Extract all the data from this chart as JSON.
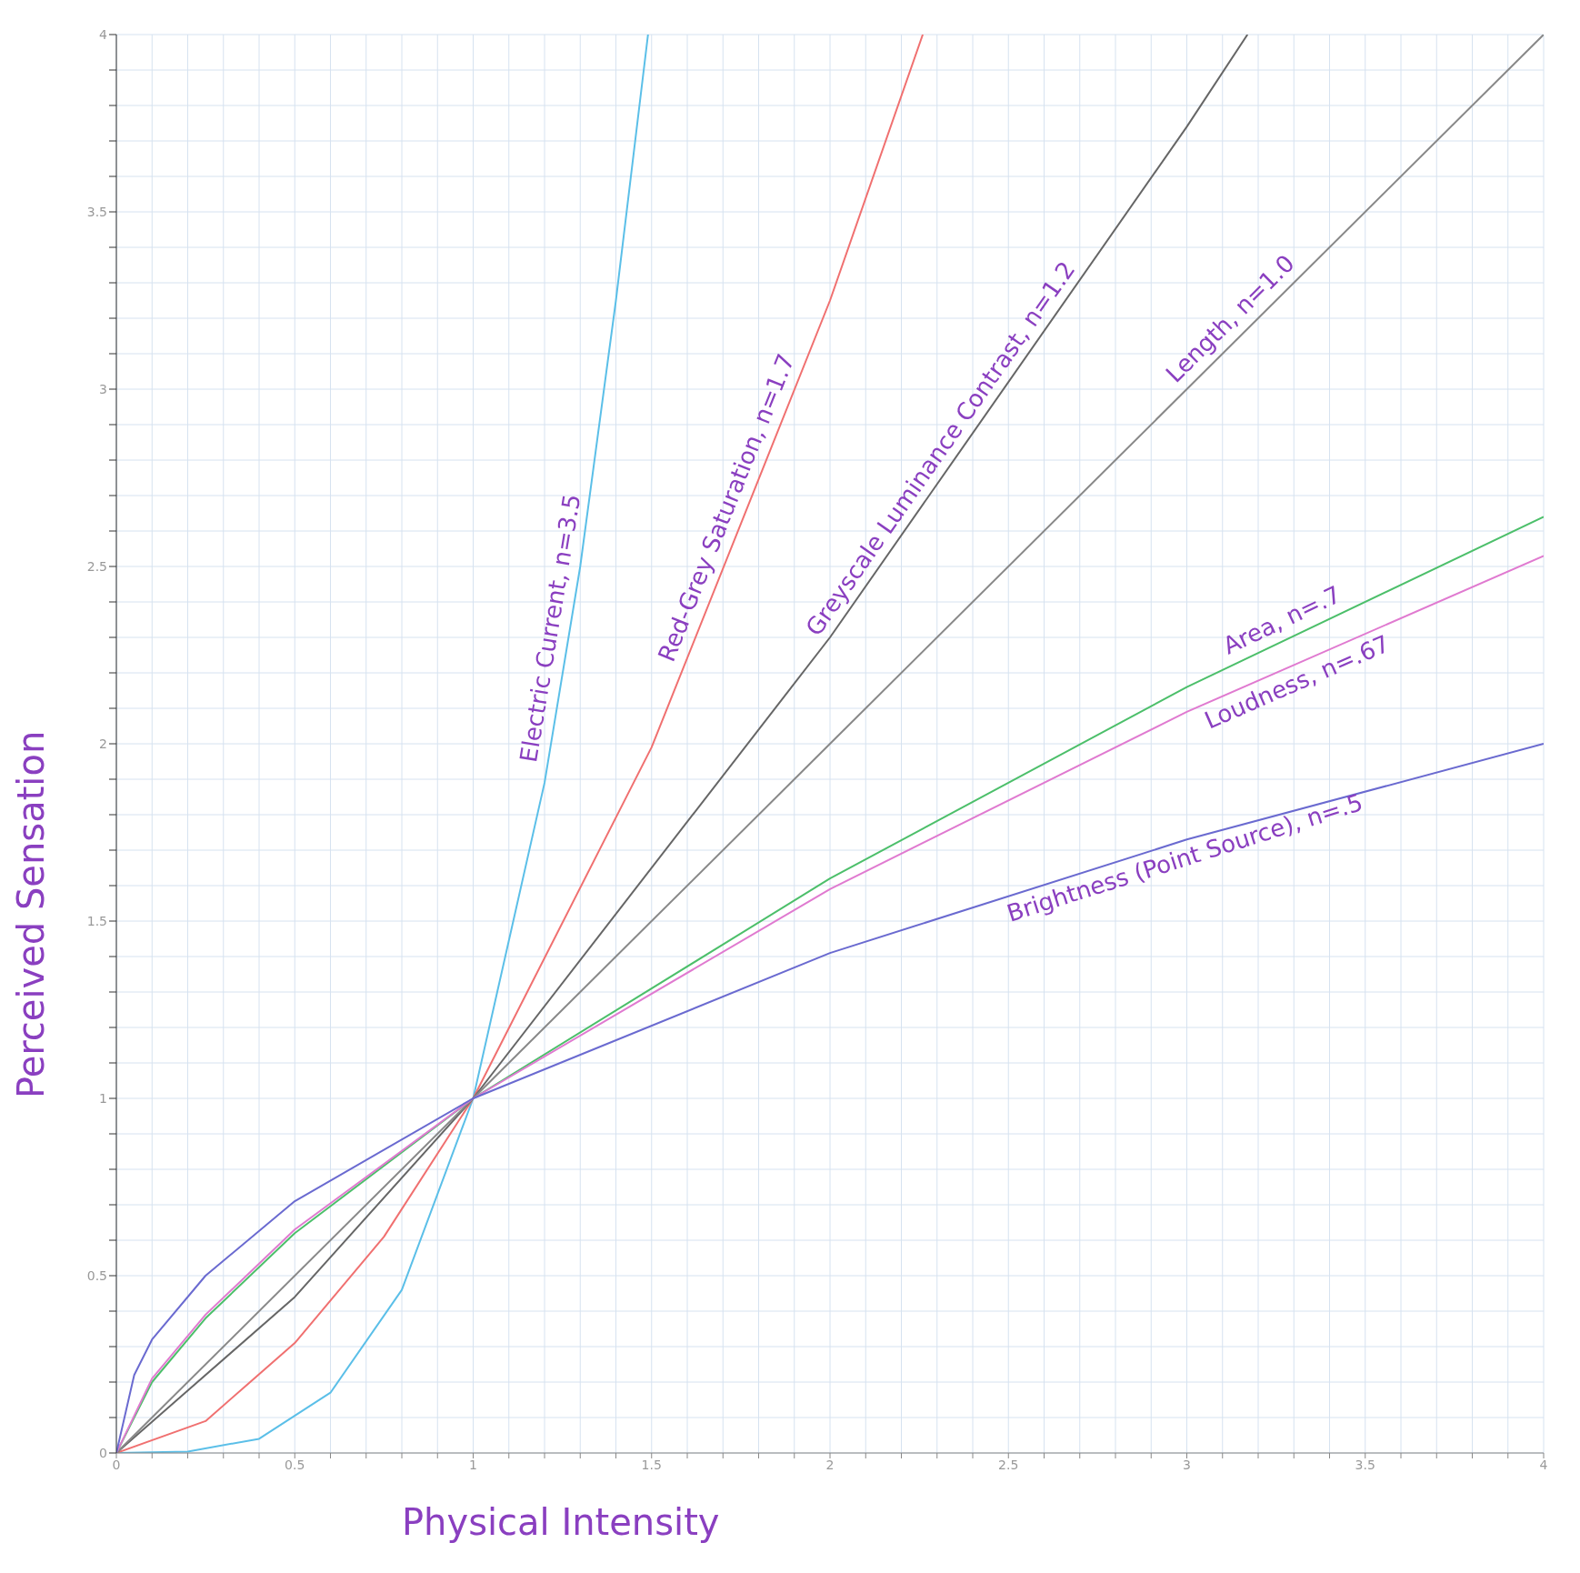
{
  "chart_data": {
    "type": "line",
    "xlabel": "Physical Intensity",
    "ylabel": "Perceived Sensation",
    "xlim": [
      0,
      4
    ],
    "ylim": [
      0,
      4
    ],
    "xticks": [
      0,
      {
        "value": 0.1,
        "label": null
      },
      {
        "value": 0.2,
        "label": null
      },
      {
        "value": 0.3,
        "label": null
      },
      {
        "value": 0.4,
        "label": null
      },
      0.5,
      {
        "value": 0.6,
        "label": null
      },
      {
        "value": 0.7,
        "label": null
      },
      {
        "value": 0.8,
        "label": null
      },
      {
        "value": 0.9,
        "label": null
      },
      1,
      {
        "value": 1.1,
        "label": null
      },
      {
        "value": 1.2,
        "label": null
      },
      {
        "value": 1.3,
        "label": null
      },
      {
        "value": 1.4,
        "label": null
      },
      1.5,
      {
        "value": 1.6,
        "label": null
      },
      {
        "value": 1.7,
        "label": null
      },
      {
        "value": 1.8,
        "label": null
      },
      {
        "value": 1.9,
        "label": null
      },
      2,
      {
        "value": 2.1,
        "label": null
      },
      {
        "value": 2.2,
        "label": null
      },
      {
        "value": 2.3,
        "label": null
      },
      {
        "value": 2.4,
        "label": null
      },
      2.5,
      {
        "value": 2.6,
        "label": null
      },
      {
        "value": 2.7,
        "label": null
      },
      {
        "value": 2.8,
        "label": null
      },
      {
        "value": 2.9,
        "label": null
      },
      3,
      {
        "value": 3.1,
        "label": null
      },
      {
        "value": 3.2,
        "label": null
      },
      {
        "value": 3.3,
        "label": null
      },
      {
        "value": 3.4,
        "label": null
      },
      3.5,
      {
        "value": 3.6,
        "label": null
      },
      {
        "value": 3.7,
        "label": null
      },
      {
        "value": 3.8,
        "label": null
      },
      {
        "value": 3.9,
        "label": null
      },
      4
    ],
    "yticks": [
      0,
      {
        "value": 0.1,
        "label": null
      },
      {
        "value": 0.2,
        "label": null
      },
      {
        "value": 0.3,
        "label": null
      },
      {
        "value": 0.4,
        "label": null
      },
      0.5,
      {
        "value": 0.6,
        "label": null
      },
      {
        "value": 0.7,
        "label": null
      },
      {
        "value": 0.8,
        "label": null
      },
      {
        "value": 0.9,
        "label": null
      },
      1,
      {
        "value": 1.1,
        "label": null
      },
      {
        "value": 1.2,
        "label": null
      },
      {
        "value": 1.3,
        "label": null
      },
      {
        "value": 1.4,
        "label": null
      },
      1.5,
      {
        "value": 1.6,
        "label": null
      },
      {
        "value": 1.7,
        "label": null
      },
      {
        "value": 1.8,
        "label": null
      },
      {
        "value": 1.9,
        "label": null
      },
      2,
      {
        "value": 2.1,
        "label": null
      },
      {
        "value": 2.2,
        "label": null
      },
      {
        "value": 2.3,
        "label": null
      },
      {
        "value": 2.4,
        "label": null
      },
      2.5,
      {
        "value": 2.6,
        "label": null
      },
      {
        "value": 2.7,
        "label": null
      },
      {
        "value": 2.8,
        "label": null
      },
      {
        "value": 2.9,
        "label": null
      },
      3,
      {
        "value": 3.1,
        "label": null
      },
      {
        "value": 3.2,
        "label": null
      },
      {
        "value": 3.3,
        "label": null
      },
      {
        "value": 3.4,
        "label": null
      },
      3.5,
      {
        "value": 3.6,
        "label": null
      },
      {
        "value": 3.7,
        "label": null
      },
      {
        "value": 3.8,
        "label": null
      },
      {
        "value": 3.9,
        "label": null
      },
      4
    ],
    "grid": true,
    "marker": "none",
    "line_style": "solid",
    "legend": false,
    "series": [
      {
        "name": "Electric Current, n=3.5",
        "color": "#5bbfe8",
        "x": [
          0,
          0.2,
          0.4,
          0.6,
          0.8,
          1,
          1.2,
          1.3,
          1.4,
          1.49
        ],
        "values": [
          0,
          0.004,
          0.04,
          0.17,
          0.46,
          1,
          1.89,
          2.5,
          3.25,
          4
        ]
      },
      {
        "name": "Red-Grey Saturation, n=1.7",
        "color": "#f07070",
        "x": [
          0,
          0.25,
          0.5,
          0.75,
          1,
          1.5,
          2,
          2.26
        ],
        "values": [
          0,
          0.09,
          0.31,
          0.61,
          1,
          1.99,
          3.25,
          4
        ]
      },
      {
        "name": "Greyscale Luminance Contrast, n=1.2",
        "color": "#666666",
        "x": [
          0,
          0.5,
          1,
          2,
          3,
          3.17
        ],
        "values": [
          0,
          0.44,
          1,
          2.3,
          3.74,
          4
        ]
      },
      {
        "name": "Length, n=1.0",
        "color": "#888888",
        "x": [
          0,
          1,
          2,
          3,
          4
        ],
        "values": [
          0,
          1,
          2,
          3,
          4
        ]
      },
      {
        "name": "Area, n=.7",
        "color": "#4cbf6a",
        "x": [
          0,
          0.1,
          0.25,
          0.5,
          1,
          2,
          3,
          4
        ],
        "values": [
          0,
          0.2,
          0.38,
          0.62,
          1,
          1.62,
          2.16,
          2.64
        ]
      },
      {
        "name": "Loudness, n=.67",
        "color": "#e07ad0",
        "x": [
          0,
          0.1,
          0.25,
          0.5,
          1,
          2,
          3,
          4
        ],
        "values": [
          0,
          0.21,
          0.39,
          0.63,
          1,
          1.59,
          2.09,
          2.53
        ]
      },
      {
        "name": "Brightness (Point Source), n=.5",
        "color": "#6a6ad0",
        "x": [
          0,
          0.05,
          0.1,
          0.25,
          0.5,
          1,
          2,
          3,
          4
        ],
        "values": [
          0,
          0.22,
          0.32,
          0.5,
          0.71,
          1,
          1.41,
          1.73,
          2
        ]
      }
    ]
  }
}
